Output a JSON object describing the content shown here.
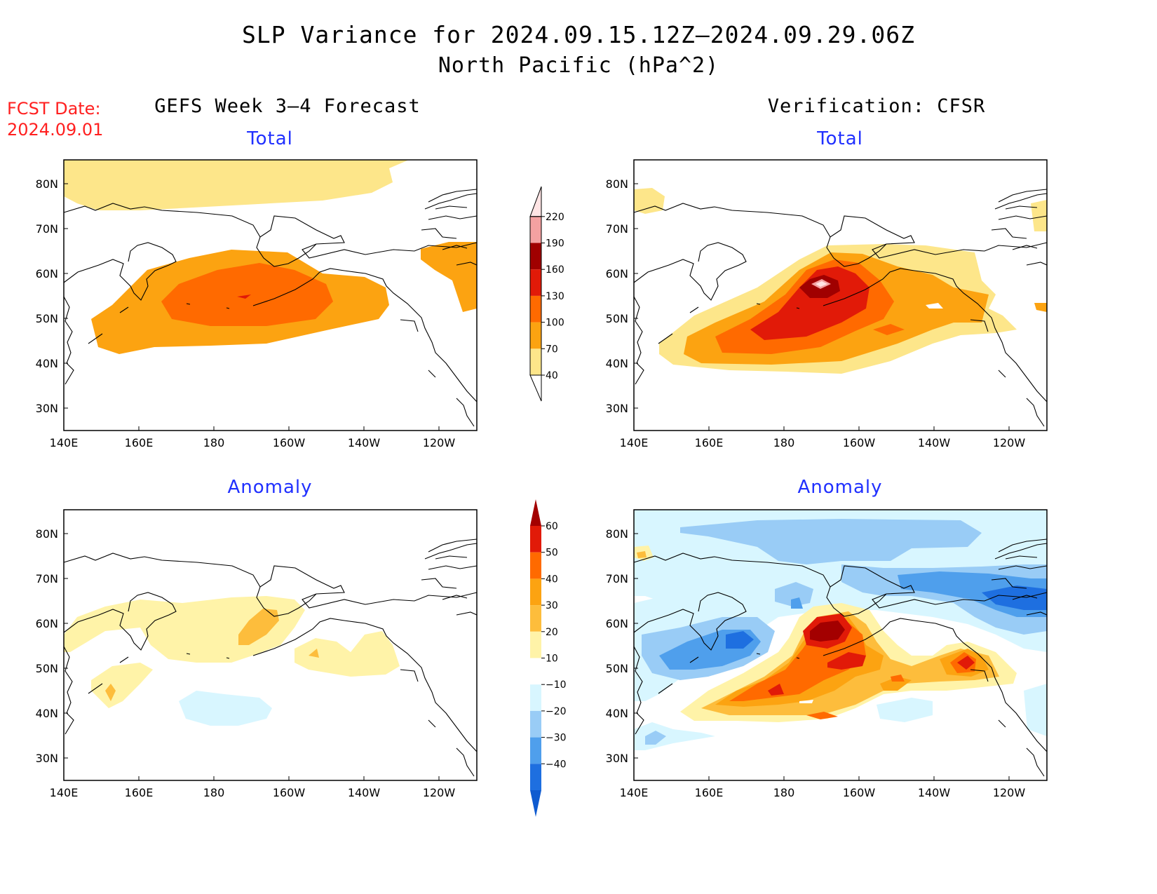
{
  "title": "SLP Variance for 2024.09.15.12Z–2024.09.29.06Z",
  "subtitle": "North Pacific (hPa^2)",
  "fcst_label": "FCST Date:",
  "fcst_date": "2024.09.01",
  "columns": {
    "left": "GEFS Week 3–4 Forecast",
    "right": "Verification: CFSR"
  },
  "panel_titles": {
    "total": "Total",
    "anomaly": "Anomaly"
  },
  "axes": {
    "lat_ticks": [
      "80N",
      "70N",
      "60N",
      "50N",
      "40N",
      "30N"
    ],
    "lon_ticks": [
      "140E",
      "160E",
      "180",
      "160W",
      "140W",
      "120W"
    ]
  },
  "colorbars": {
    "total": {
      "levels": [
        "40",
        "70",
        "100",
        "130",
        "160",
        "190",
        "220"
      ],
      "colors": [
        "#fde68a",
        "#fca311",
        "#ff6a00",
        "#e11a08",
        "#a00000",
        "#f4a1a1",
        "#ffe4e4"
      ]
    },
    "anomaly": {
      "levels": [
        "60",
        "50",
        "40",
        "30",
        "20",
        "10",
        "−10",
        "−20",
        "−30",
        "−40"
      ],
      "colors": [
        "#a30000",
        "#e11a08",
        "#ff6a00",
        "#fca311",
        "#fdbd3c",
        "#fff3a8",
        "#ffffff",
        "#d8f6ff",
        "#99ccf6",
        "#4f9fec",
        "#1e6fe0",
        "#0f5bd0"
      ]
    }
  },
  "chart_data": [
    {
      "type": "heatmap",
      "title": "Total",
      "column": "GEFS Week 3–4 Forecast",
      "xlabel": "",
      "ylabel": "",
      "xlim": [
        "140E",
        "110W"
      ],
      "ylim": [
        "25N",
        "85N"
      ],
      "units": "hPa^2",
      "max_region": {
        "level_range": "100-130",
        "location": "central North Pacific near 180-150W, 48-58N"
      }
    },
    {
      "type": "heatmap",
      "title": "Total",
      "column": "Verification: CFSR",
      "xlim": [
        "140E",
        "110W"
      ],
      "ylim": [
        "25N",
        "85N"
      ],
      "units": "hPa^2",
      "max_region": {
        "level_range": "190-220",
        "location": "near 170W, 57N"
      }
    },
    {
      "type": "heatmap",
      "title": "Anomaly",
      "column": "GEFS Week 3–4 Forecast",
      "xlim": [
        "140E",
        "110W"
      ],
      "ylim": [
        "25N",
        "85N"
      ],
      "units": "hPa^2",
      "max_region": {
        "level_range": "20-30",
        "location": "near 170W, 58N"
      }
    },
    {
      "type": "heatmap",
      "title": "Anomaly",
      "column": "Verification: CFSR",
      "xlim": [
        "140E",
        "110W"
      ],
      "ylim": [
        "25N",
        "85N"
      ],
      "units": "hPa^2",
      "max_region": {
        "level_range": "50-60",
        "location": "near 170W, 57N"
      },
      "min_region": {
        "level_range": "below -40",
        "location": "Bering Sea / northern Canada"
      }
    }
  ]
}
